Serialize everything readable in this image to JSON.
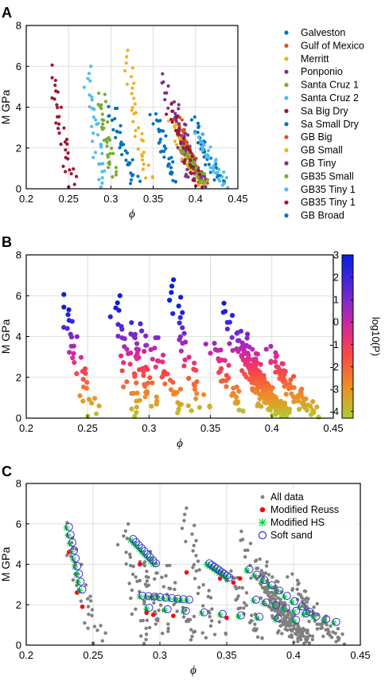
{
  "colors": {
    "galveston": "#0072bd",
    "gulf": "#d95319",
    "merritt": "#edb120",
    "ponponio": "#7e2f8e",
    "santacruz1": "#77ac30",
    "santacruz2": "#4dbeee",
    "sabigdry": "#a2142f",
    "gray": "#808080",
    "reuss": "#ff0000",
    "hs": "#00cc33",
    "soft": "#3333cc"
  },
  "chart_data": [
    {
      "type": "scatter",
      "panel": "A",
      "xlabel": "ϕ",
      "ylabel": "M GPa",
      "xlim": [
        0.2,
        0.45
      ],
      "ylim": [
        0,
        8
      ],
      "xticks": [
        "0.2",
        "0.25",
        "0.3",
        "0.35",
        "0.4",
        "0.45"
      ],
      "yticks": [
        "0",
        "2",
        "4",
        "6",
        "8"
      ],
      "grid": true,
      "legend_position": "right-outside",
      "series": [
        {
          "name": "Galveston",
          "color": "galveston",
          "phi0": 0.352,
          "m0": 3.8,
          "phi1": 0.375,
          "m1": 0.3
        },
        {
          "name": "Gulf of Mexico",
          "color": "gulf",
          "phi0": 0.378,
          "m0": 3.6,
          "phi1": 0.405,
          "m1": 0.3
        },
        {
          "name": "Merritt",
          "color": "merritt",
          "phi0": 0.318,
          "m0": 6.8,
          "phi1": 0.345,
          "m1": 0.4
        },
        {
          "name": "Ponponio",
          "color": "ponponio",
          "phi0": 0.362,
          "m0": 5.6,
          "phi1": 0.395,
          "m1": 0.3
        },
        {
          "name": "Santa Cruz 1",
          "color": "santacruz1",
          "phi0": 0.288,
          "m0": 4.8,
          "phi1": 0.302,
          "m1": 0.6
        },
        {
          "name": "Santa Cruz 2",
          "color": "santacruz2",
          "phi0": 0.272,
          "m0": 5.9,
          "phi1": 0.29,
          "m1": 0.2
        },
        {
          "name": "Sa Big Dry",
          "color": "sabigdry",
          "phi0": 0.228,
          "m0": 5.9,
          "phi1": 0.255,
          "m1": 0.2
        },
        {
          "name": "Sa Small Dry",
          "color": "galveston",
          "phi0": 0.395,
          "m0": 3.6,
          "phi1": 0.43,
          "m1": 0.2
        },
        {
          "name": "GB Big",
          "color": "gulf",
          "phi0": 0.382,
          "m0": 2.6,
          "phi1": 0.41,
          "m1": 0.2
        },
        {
          "name": "GB Small",
          "color": "merritt",
          "phi0": 0.372,
          "m0": 3.4,
          "phi1": 0.405,
          "m1": 0.2
        },
        {
          "name": "GB Tiny",
          "color": "ponponio",
          "phi0": 0.375,
          "m0": 4.2,
          "phi1": 0.41,
          "m1": 0.2
        },
        {
          "name": "GB35 Small",
          "color": "santacruz1",
          "phi0": 0.385,
          "m0": 2.2,
          "phi1": 0.41,
          "m1": 0.2
        },
        {
          "name": "GB35 Tiny 1",
          "color": "santacruz2",
          "phi0": 0.405,
          "m0": 2.8,
          "phi1": 0.435,
          "m1": 0.1
        },
        {
          "name": "GB35 Tiny 1",
          "color": "sabigdry",
          "phi0": 0.37,
          "m0": 4.0,
          "phi1": 0.405,
          "m1": 0.2
        },
        {
          "name": "GB Broad",
          "color": "galveston",
          "phi0": 0.3,
          "m0": 4.2,
          "phi1": 0.33,
          "m1": 0.3
        }
      ]
    },
    {
      "type": "scatter",
      "panel": "B",
      "xlabel": "ϕ",
      "ylabel": "M GPa",
      "xlim": [
        0.2,
        0.45
      ],
      "ylim": [
        0,
        8
      ],
      "xticks": [
        "0.2",
        "0.25",
        "0.3",
        "0.35",
        "0.4",
        "0.45"
      ],
      "yticks": [
        "0",
        "2",
        "4",
        "6",
        "8"
      ],
      "grid": true,
      "colorbar": {
        "label": "log10(P)",
        "range": [
          -4.3,
          3
        ],
        "ticks": [
          "3",
          "2",
          "1",
          "0",
          "-1",
          "-2",
          "-3",
          "-4"
        ]
      }
    },
    {
      "type": "scatter",
      "panel": "C",
      "xlabel": "ϕ",
      "ylabel": "M GPa",
      "xlim": [
        0.2,
        0.45
      ],
      "ylim": [
        0,
        8
      ],
      "xticks": [
        "0.2",
        "0.25",
        "0.3",
        "0.35",
        "0.4",
        "0.45"
      ],
      "yticks": [
        "0",
        "2",
        "4",
        "6",
        "8"
      ],
      "grid": true,
      "legend_position": "top-right",
      "series": [
        {
          "name": "All data",
          "color": "gray",
          "marker": "dot"
        },
        {
          "name": "Modified Reuss",
          "color": "reuss",
          "marker": "dot"
        },
        {
          "name": "Modified HS",
          "color": "hs",
          "marker": "star"
        },
        {
          "name": "Soft sand",
          "color": "soft",
          "marker": "circle"
        }
      ]
    }
  ]
}
